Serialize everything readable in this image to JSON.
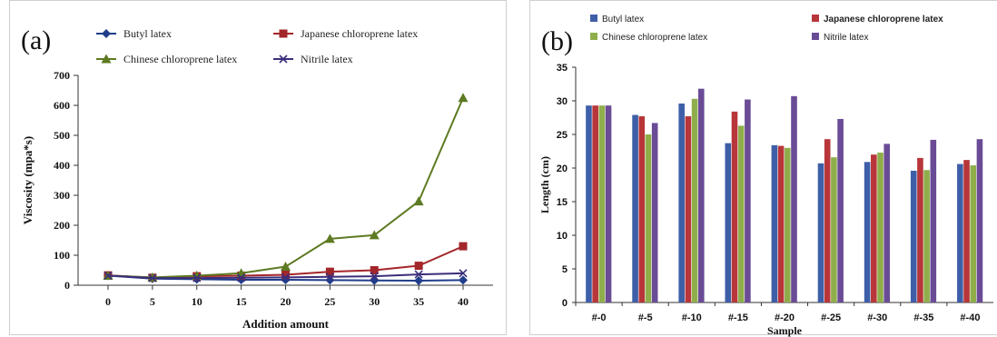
{
  "chart_data": [
    {
      "type": "line",
      "panel_label": "(a)",
      "title": "",
      "xlabel": "Addition amount",
      "ylabel": "Viscosity (mpa*s)",
      "x": [
        0,
        5,
        10,
        15,
        20,
        25,
        30,
        35,
        40
      ],
      "ylim": [
        0,
        700
      ],
      "yticks": [
        0,
        100,
        200,
        300,
        400,
        500,
        600,
        700
      ],
      "grid": false,
      "legend_position": "top",
      "series": [
        {
          "name": "Butyl latex",
          "color": "#1f3d8a",
          "marker": "diamond",
          "values": [
            32,
            22,
            20,
            18,
            18,
            17,
            16,
            15,
            17
          ]
        },
        {
          "name": "Japanese chloroprene latex",
          "color": "#a3262a",
          "marker": "square",
          "values": [
            33,
            25,
            30,
            32,
            35,
            45,
            50,
            65,
            130
          ]
        },
        {
          "name": "Chinese chloroprene latex",
          "color": "#5e7a22",
          "marker": "triangle",
          "values": [
            32,
            26,
            32,
            40,
            62,
            155,
            167,
            280,
            625
          ]
        },
        {
          "name": "Nitrile latex",
          "color": "#3b2e7a",
          "marker": "x",
          "values": [
            32,
            24,
            24,
            25,
            26,
            28,
            30,
            36,
            40
          ]
        }
      ]
    },
    {
      "type": "bar",
      "panel_label": "(b)",
      "title": "",
      "xlabel": "Sample",
      "ylabel": "Length (cm)",
      "categories": [
        "#-0",
        "#-5",
        "#-10",
        "#-15",
        "#-20",
        "#-25",
        "#-30",
        "#-35",
        "#-40"
      ],
      "ylim": [
        0,
        35
      ],
      "yticks": [
        0,
        5,
        10,
        15,
        20,
        25,
        30,
        35
      ],
      "grid": false,
      "legend_position": "top",
      "series": [
        {
          "name": "Butyl latex",
          "color": "#3e5fa8",
          "values": [
            29.3,
            27.9,
            29.6,
            23.7,
            23.4,
            20.7,
            20.9,
            19.6,
            20.6
          ]
        },
        {
          "name": "Japanese chloroprene latex",
          "color": "#b8363a",
          "values": [
            29.3,
            27.7,
            27.7,
            28.4,
            23.3,
            24.3,
            22.0,
            21.5,
            21.2
          ]
        },
        {
          "name": "Chinese chloroprene latex",
          "color": "#8fae4b",
          "values": [
            29.3,
            25.0,
            30.3,
            26.3,
            23.0,
            21.6,
            22.3,
            19.7,
            20.4
          ]
        },
        {
          "name": "Nitrile latex",
          "color": "#6a4b96",
          "values": [
            29.3,
            26.7,
            31.8,
            30.2,
            30.7,
            27.3,
            23.6,
            24.2,
            24.3
          ]
        }
      ]
    }
  ]
}
